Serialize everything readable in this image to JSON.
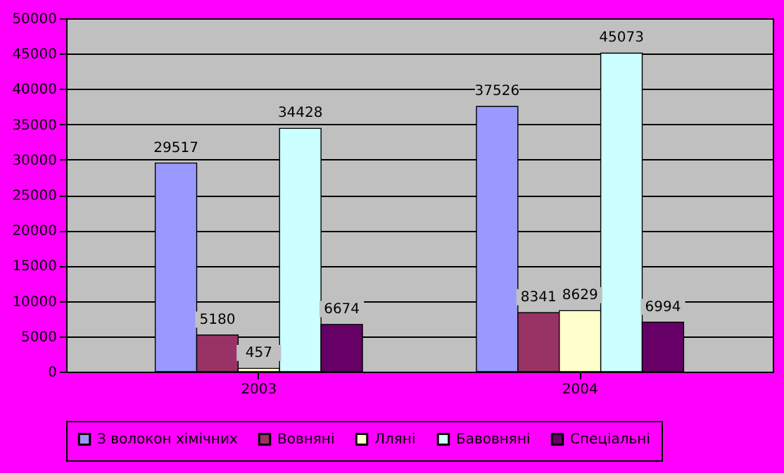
{
  "chart_data": {
    "type": "bar",
    "categories": [
      "2003",
      "2004"
    ],
    "series": [
      {
        "name": "З волокон хімічних",
        "color": "#9999ff",
        "values": [
          29517,
          37526
        ]
      },
      {
        "name": "Вовняні",
        "color": "#993366",
        "values": [
          5180,
          8341
        ]
      },
      {
        "name": "Лляні",
        "color": "#ffffcc",
        "values": [
          457,
          8629
        ]
      },
      {
        "name": "Бавовняні",
        "color": "#ccffff",
        "values": [
          34428,
          45073
        ]
      },
      {
        "name": "Спеціальні",
        "color": "#660066",
        "values": [
          6674,
          6994
        ]
      }
    ],
    "ylim": [
      0,
      50000
    ],
    "yticks": [
      0,
      5000,
      10000,
      15000,
      20000,
      25000,
      30000,
      35000,
      40000,
      45000,
      50000
    ],
    "grid": "y",
    "legend": "bottom",
    "data_labels": true
  }
}
